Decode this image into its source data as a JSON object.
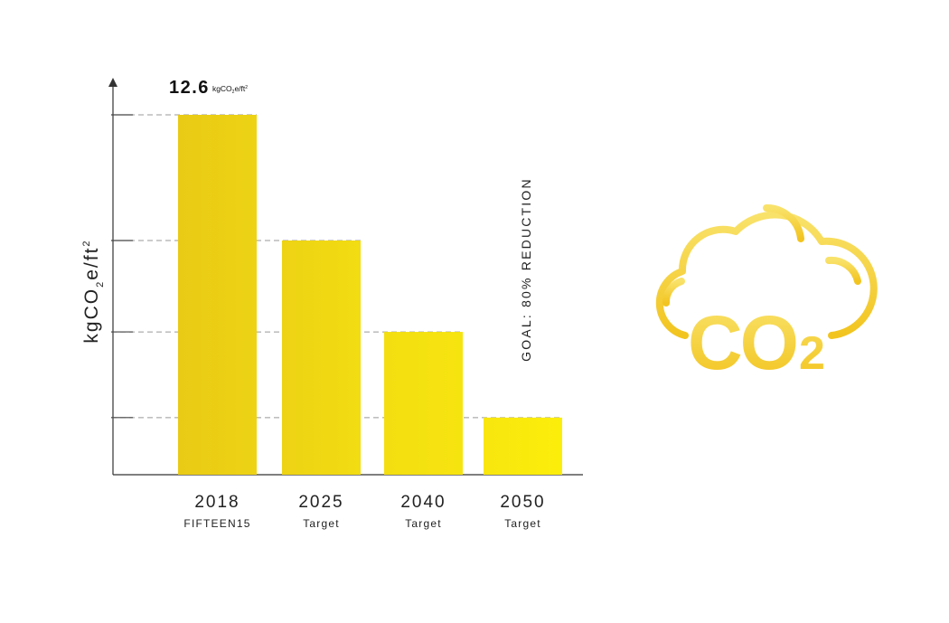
{
  "chart_data": {
    "type": "bar",
    "categories": [
      "2018",
      "2025",
      "2040",
      "2050"
    ],
    "sublabels": [
      "FIFTEEN15",
      "Target",
      "Target",
      "Target"
    ],
    "values": [
      12.6,
      8.2,
      5.0,
      2.0
    ],
    "ylabel_parts": {
      "base": "kgCO",
      "sub": "2",
      "rest": "e/ft",
      "sup": "2"
    },
    "ylim": [
      0,
      13.5
    ],
    "gridlines": [
      12.6,
      8.2,
      5.0,
      2.0
    ],
    "top_label": {
      "value": "12.6",
      "unit_parts": {
        "base": "kgCO",
        "sub": "2",
        "rest": "e/ft",
        "sup": "2"
      }
    },
    "annotation": "GOAL: 80% REDUCTION",
    "colors": {
      "bar_dark": "#E8C914",
      "bar_light": "#FBEC0E",
      "axis": "#333333",
      "grid": "#999999"
    },
    "bar_colors": [
      [
        "#E9CA15",
        "#EDD314"
      ],
      [
        "#EDD314",
        "#F2DC12"
      ],
      [
        "#F3DE11",
        "#F6E40F"
      ],
      [
        "#F8E60E",
        "#FCEE0B"
      ]
    ]
  },
  "icon": {
    "name": "co2-cloud-icon",
    "text": "CO",
    "sub": "2",
    "colors": {
      "light": "#F9E26A",
      "dark": "#F2C41F"
    }
  }
}
